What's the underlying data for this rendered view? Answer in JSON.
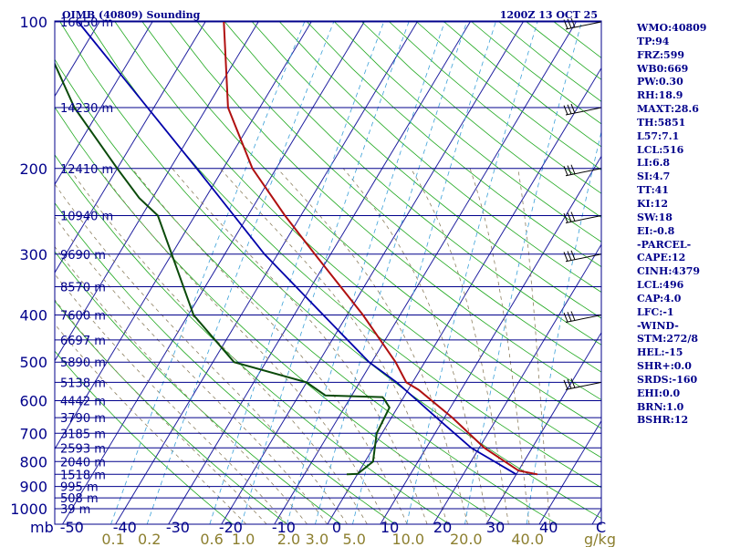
{
  "header": {
    "station": "OIMB (40809) Sounding",
    "time": "1200Z 13 OCT 25"
  },
  "indices": [
    "WMO:40809",
    "TP:94",
    "FRZ:599",
    "WB0:669",
    "PW:0.30",
    "RH:18.9",
    "MAXT:28.6",
    "TH:5851",
    "L57:7.1",
    "LCL:516",
    "LI:6.8",
    "SI:4.7",
    "TT:41",
    "KI:12",
    "SW:18",
    "EI:-0.8",
    "-PARCEL-",
    "CAPE:12",
    "CINH:4379",
    "LCL:496",
    "CAP:4.0",
    "LFC:-1",
    "-WIND-",
    "STM:272/8",
    "HEL:-15",
    "SHR+:0.0",
    "SRDS:-160",
    "EHI:0.0",
    "BRN:1.0",
    "BSHR:12"
  ],
  "colors": {
    "isobar": "#00008b",
    "isotherm": "#1f1f9f",
    "dry_adiabat": "#1fa81f",
    "moist_adiabat": "#8c7f5f",
    "mixing_ratio": "#3aa0d8",
    "temperature": "#b01010",
    "dewpoint": "#0a4a0a",
    "parcel": "#0000aa",
    "mixing_label": "#8c7f2f"
  },
  "chart_data": {
    "type": "line",
    "chart_kind": "skew-T log-P sounding",
    "y_scale": "log",
    "pressure_unit": "mb",
    "temperature_unit": "C",
    "xlim": [
      -50,
      50
    ],
    "ylim": [
      1050,
      100
    ],
    "pressure_ticks": [
      100,
      200,
      300,
      400,
      500,
      600,
      700,
      800,
      900,
      1000
    ],
    "temperature_ticks": [
      -50,
      -40,
      -30,
      -20,
      -10,
      0,
      10,
      20,
      30,
      40
    ],
    "x_axis_corner_labels": {
      "left": "mb",
      "right": "C"
    },
    "height_labels": [
      {
        "p": 100,
        "text": "16650 m"
      },
      {
        "p": 150,
        "text": "14230 m"
      },
      {
        "p": 200,
        "text": "12410 m"
      },
      {
        "p": 250,
        "text": "10940 m"
      },
      {
        "p": 300,
        "text": "9690 m"
      },
      {
        "p": 350,
        "text": "8570 m"
      },
      {
        "p": 400,
        "text": "7600 m"
      },
      {
        "p": 450,
        "text": "6697 m"
      },
      {
        "p": 500,
        "text": "5890 m"
      },
      {
        "p": 550,
        "text": "5138 m"
      },
      {
        "p": 600,
        "text": "4442 m"
      },
      {
        "p": 650,
        "text": "3790 m"
      },
      {
        "p": 700,
        "text": "3185 m"
      },
      {
        "p": 750,
        "text": "2593 m"
      },
      {
        "p": 800,
        "text": "2040 m"
      },
      {
        "p": 850,
        "text": "1518 m"
      },
      {
        "p": 900,
        "text": "995 m"
      },
      {
        "p": 950,
        "text": "508 m"
      },
      {
        "p": 1000,
        "text": "39 m"
      }
    ],
    "mixing_ratio_labels": [
      "0.1",
      "0.2",
      "0.6",
      "1.0",
      "2.0",
      "3.0",
      "5.0",
      "10.0",
      "20.0",
      "40.0"
    ],
    "mixing_ratio_unit": "g/kg",
    "temperature_profile": [
      {
        "p": 850,
        "t": 34.0
      },
      {
        "p": 835,
        "t": 30.0
      },
      {
        "p": 750,
        "t": 21.0
      },
      {
        "p": 650,
        "t": 11.5
      },
      {
        "p": 570,
        "t": 2.0
      },
      {
        "p": 550,
        "t": -1.2
      },
      {
        "p": 500,
        "t": -5.5
      },
      {
        "p": 400,
        "t": -17.0
      },
      {
        "p": 300,
        "t": -33.0
      },
      {
        "p": 250,
        "t": -43.0
      },
      {
        "p": 200,
        "t": -54.5
      },
      {
        "p": 150,
        "t": -66.0
      },
      {
        "p": 100,
        "t": -76.5
      }
    ],
    "dewpoint_profile": [
      {
        "p": 850,
        "t": -2.0
      },
      {
        "p": 848,
        "t": 0.0
      },
      {
        "p": 800,
        "t": 1.5
      },
      {
        "p": 700,
        "t": -1.0
      },
      {
        "p": 620,
        "t": -1.5
      },
      {
        "p": 595,
        "t": -3.5
      },
      {
        "p": 590,
        "t": -4.0
      },
      {
        "p": 585,
        "t": -15.0
      },
      {
        "p": 550,
        "t": -20.0
      },
      {
        "p": 500,
        "t": -36.0
      },
      {
        "p": 400,
        "t": -49.0
      },
      {
        "p": 300,
        "t": -60.0
      },
      {
        "p": 250,
        "t": -67.0
      },
      {
        "p": 230,
        "t": -72.5
      },
      {
        "p": 200,
        "t": -80.0
      },
      {
        "p": 150,
        "t": -95.0
      },
      {
        "p": 100,
        "t": -112.0
      }
    ],
    "parcel_profile": [
      {
        "p": 850,
        "t": 30.0
      },
      {
        "p": 750,
        "t": 18.5
      },
      {
        "p": 650,
        "t": 8.5
      },
      {
        "p": 600,
        "t": 3.0
      },
      {
        "p": 550,
        "t": -3.0
      },
      {
        "p": 500,
        "t": -10.5
      },
      {
        "p": 400,
        "t": -24.5
      },
      {
        "p": 300,
        "t": -42.5
      },
      {
        "p": 200,
        "t": -65.0
      },
      {
        "p": 100,
        "t": -104.0
      }
    ],
    "wind_barb_levels": [
      100,
      150,
      200,
      250,
      300,
      400,
      550
    ]
  }
}
